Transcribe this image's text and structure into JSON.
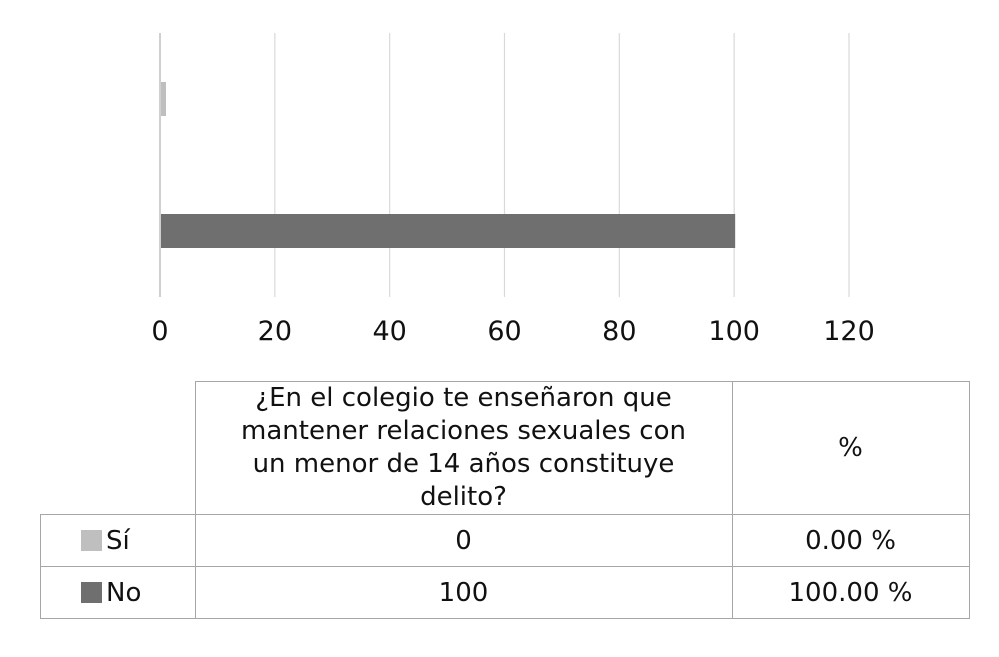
{
  "chart_data": {
    "type": "bar",
    "orientation": "horizontal",
    "categories": [
      "Sí",
      "No"
    ],
    "values": [
      0,
      100
    ],
    "colors": [
      "#bfbfbf",
      "#6f6f6f"
    ],
    "xlim": [
      0,
      120
    ],
    "xticks": [
      0,
      20,
      40,
      60,
      80,
      100,
      120
    ],
    "grid": "vertical",
    "title": "",
    "xlabel": "",
    "ylabel": ""
  },
  "table": {
    "header": {
      "question": "¿En el colegio te enseñaron que mantener relaciones sexuales con un menor de 14 años constituye delito?",
      "percent": "%"
    },
    "rows": [
      {
        "label": "Sí",
        "value": "0",
        "percent": "0.00 %",
        "color": "#bfbfbf"
      },
      {
        "label": "No",
        "value": "100",
        "percent": "100.00 %",
        "color": "#6f6f6f"
      }
    ]
  }
}
